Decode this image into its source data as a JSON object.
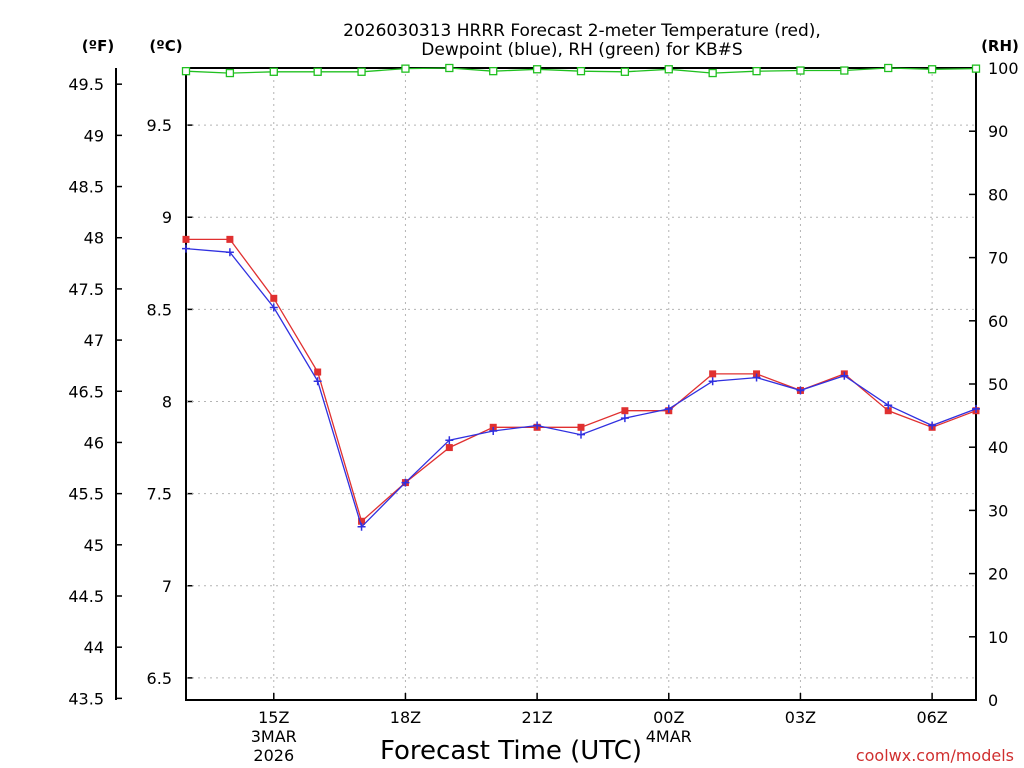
{
  "chart_data": {
    "type": "line",
    "title_lines": [
      "2026030313 HRRR Forecast 2-meter Temperature (red),",
      "Dewpoint (blue), RH (green) for KB#S"
    ],
    "units": {
      "fahrenheit": "(ºF)",
      "celsius": "(ºC)",
      "rh": "(RH)"
    },
    "xlabel": "Forecast Time (UTC)",
    "credit": "coolwx.com/models",
    "x_tick_labels": [
      {
        "hour": 15,
        "label": "15Z",
        "sub": [
          "3MAR",
          "2026"
        ]
      },
      {
        "hour": 18,
        "label": "18Z",
        "sub": []
      },
      {
        "hour": 21,
        "label": "21Z",
        "sub": []
      },
      {
        "hour": 24,
        "label": "00Z",
        "sub": [
          "4MAR"
        ]
      },
      {
        "hour": 27,
        "label": "03Z",
        "sub": []
      },
      {
        "hour": 30,
        "label": "06Z",
        "sub": []
      }
    ],
    "xlim": [
      13,
      31
    ],
    "celsius_axis": {
      "ylim": [
        6.38,
        9.81
      ],
      "ticks": [
        "6.5",
        "7",
        "7.5",
        "8",
        "8.5",
        "9",
        "9.5"
      ]
    },
    "fahrenheit_axis": {
      "ticks": [
        "43.5",
        "44",
        "44.5",
        "45",
        "45.5",
        "46",
        "46.5",
        "47",
        "47.5",
        "48",
        "48.5",
        "49",
        "49.5"
      ]
    },
    "rh_axis": {
      "ylim": [
        0,
        100
      ],
      "ticks": [
        "0",
        "10",
        "20",
        "30",
        "40",
        "50",
        "60",
        "70",
        "80",
        "90",
        "100"
      ]
    },
    "x": [
      13,
      14,
      15,
      16,
      17,
      18,
      19,
      20,
      21,
      22,
      23,
      24,
      25,
      26,
      27,
      28,
      29,
      30,
      31
    ],
    "series": [
      {
        "name": "Temperature",
        "unit": "C",
        "color": "#e03030",
        "marker": "square",
        "values": [
          8.88,
          8.88,
          8.56,
          8.16,
          7.35,
          7.56,
          7.75,
          7.86,
          7.86,
          7.86,
          7.95,
          7.95,
          8.15,
          8.15,
          8.06,
          8.15,
          7.95,
          7.86,
          7.95
        ]
      },
      {
        "name": "Dewpoint",
        "unit": "C",
        "color": "#3030e0",
        "marker": "plus",
        "values": [
          8.83,
          8.81,
          8.51,
          8.11,
          7.32,
          7.56,
          7.79,
          7.84,
          7.87,
          7.82,
          7.91,
          7.96,
          8.11,
          8.13,
          8.06,
          8.14,
          7.98,
          7.87,
          7.96
        ]
      },
      {
        "name": "RH",
        "unit": "%",
        "color": "#20c020",
        "marker": "hollow-square",
        "values": [
          99.5,
          99.2,
          99.4,
          99.4,
          99.4,
          99.9,
          100,
          99.5,
          99.8,
          99.5,
          99.4,
          99.8,
          99.2,
          99.5,
          99.6,
          99.6,
          100,
          99.8,
          99.9
        ]
      }
    ]
  }
}
